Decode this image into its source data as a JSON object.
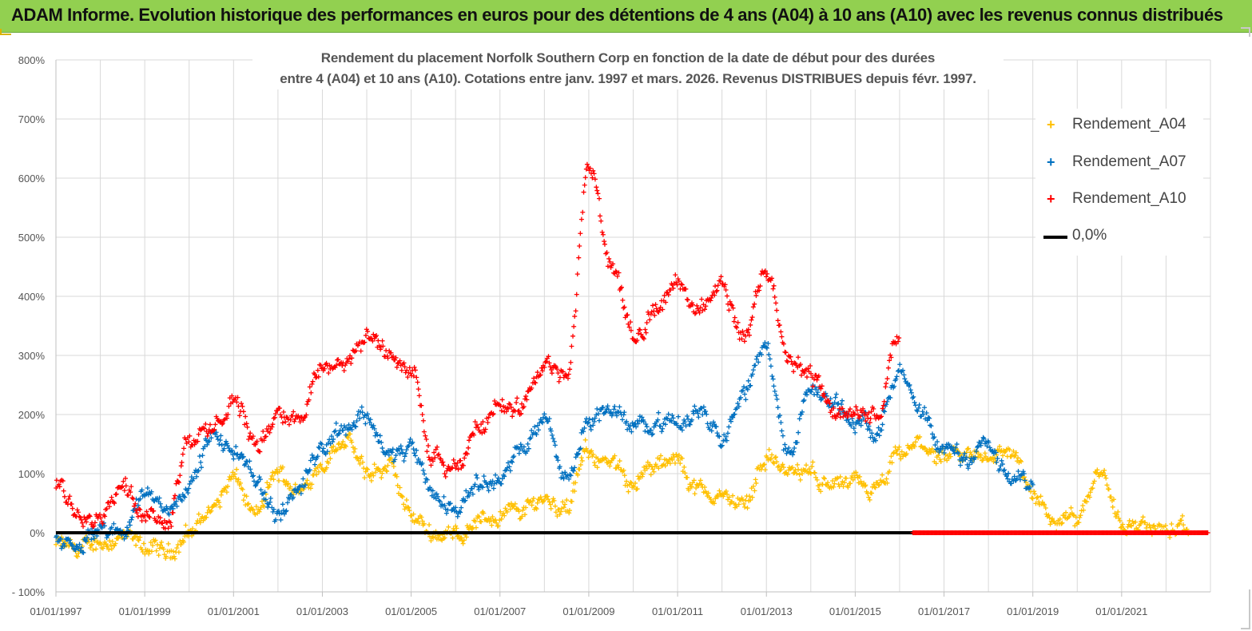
{
  "header": {
    "title": "ADAM Informe. Evolution historique des performances en euros pour des détentions de 4 ans (A04) à 10 ans (A10) avec les revenus connus distribués"
  },
  "colors": {
    "banner": "#92d050",
    "a04": "#ffc000",
    "a07": "#0070c0",
    "a10": "#ff0000",
    "zero": "#000000",
    "grid": "#d9d9d9"
  },
  "chart_data": {
    "type": "scatter",
    "title_line1": "Rendement du placement Norfolk Southern Corp en fonction de la date de début pour des durées",
    "title_line2": "entre 4 (A04) et 10 ans (A10). Cotations entre janv. 1997 et mars. 2026. Revenus DISTRIBUES depuis févr. 1997.",
    "x_tick_labels": [
      "01/01/1997",
      "01/01/1999",
      "01/01/2001",
      "01/01/2003",
      "01/01/2005",
      "01/01/2007",
      "01/01/2009",
      "01/01/2011",
      "01/01/2013",
      "01/01/2015",
      "01/01/2017",
      "01/01/2019",
      "01/01/2021"
    ],
    "y_tick_labels": [
      "- 100%",
      "0%",
      "100%",
      "200%",
      "300%",
      "400%",
      "500%",
      "600%",
      "700%",
      "800%"
    ],
    "xlim": [
      "1997-01-01",
      "2023-01-01"
    ],
    "ylim": [
      -100,
      800
    ],
    "grid": true,
    "legend_position": "top-right",
    "series": [
      {
        "name": "Rendement_A04",
        "color": "#ffc000",
        "marker": "+",
        "x": [
          1997.0,
          1997.5,
          1998.0,
          1998.5,
          1999.0,
          1999.5,
          2000.0,
          2000.5,
          2001.0,
          2001.5,
          2002.0,
          2002.5,
          2003.0,
          2003.5,
          2004.0,
          2004.5,
          2005.0,
          2005.5,
          2006.0,
          2006.5,
          2007.0,
          2007.5,
          2008.0,
          2008.5,
          2009.0,
          2009.5,
          2010.0,
          2010.5,
          2011.0,
          2011.5,
          2012.0,
          2012.5,
          2013.0,
          2013.5,
          2014.0,
          2014.5,
          2015.0,
          2015.5,
          2016.0,
          2016.5,
          2017.0,
          2017.5,
          2018.0,
          2018.5,
          2019.0,
          2019.5,
          2020.0,
          2020.5,
          2021.0,
          2021.5,
          2022.0,
          2022.5
        ],
        "y": [
          -20,
          -30,
          -15,
          -10,
          -25,
          -35,
          0,
          40,
          90,
          30,
          100,
          70,
          120,
          160,
          100,
          110,
          30,
          0,
          -5,
          20,
          30,
          40,
          60,
          40,
          140,
          110,
          90,
          110,
          120,
          70,
          60,
          50,
          130,
          100,
          100,
          80,
          80,
          70,
          130,
          150,
          120,
          130,
          130,
          140,
          60,
          20,
          30,
          110,
          20,
          10,
          5,
          0
        ]
      },
      {
        "name": "Rendement_A07",
        "color": "#0070c0",
        "marker": "+",
        "x": [
          1997.0,
          1997.5,
          1998.0,
          1998.5,
          1999.0,
          1999.5,
          2000.0,
          2000.5,
          2001.0,
          2001.5,
          2002.0,
          2002.5,
          2003.0,
          2003.5,
          2004.0,
          2004.5,
          2005.0,
          2005.5,
          2006.0,
          2006.5,
          2007.0,
          2007.5,
          2008.0,
          2008.5,
          2009.0,
          2009.5,
          2010.0,
          2010.5,
          2011.0,
          2011.5,
          2012.0,
          2012.5,
          2013.0,
          2013.5,
          2014.0,
          2014.5,
          2015.0,
          2015.5,
          2016.0,
          2016.5,
          2017.0,
          2017.5,
          2018.0,
          2018.5,
          2019.0
        ],
        "y": [
          -15,
          -25,
          5,
          0,
          70,
          40,
          80,
          160,
          140,
          90,
          30,
          80,
          150,
          180,
          200,
          130,
          140,
          60,
          40,
          90,
          90,
          140,
          200,
          90,
          190,
          210,
          180,
          190,
          180,
          210,
          170,
          240,
          310,
          130,
          240,
          220,
          190,
          180,
          270,
          190,
          140,
          130,
          150,
          90,
          85
        ]
      },
      {
        "name": "Rendement_A10",
        "color": "#ff0000",
        "marker": "+",
        "x": [
          1997.0,
          1997.5,
          1998.0,
          1998.5,
          1999.0,
          1999.5,
          2000.0,
          2000.5,
          2001.0,
          2001.5,
          2002.0,
          2002.5,
          2003.0,
          2003.5,
          2004.0,
          2004.5,
          2005.0,
          2005.5,
          2006.0,
          2006.5,
          2007.0,
          2007.5,
          2008.0,
          2008.5,
          2009.0,
          2009.5,
          2010.0,
          2010.5,
          2011.0,
          2011.5,
          2012.0,
          2012.5,
          2013.0,
          2013.5,
          2014.0,
          2014.5,
          2015.0,
          2015.5,
          2016.0
        ],
        "y": [
          80,
          40,
          30,
          80,
          40,
          20,
          160,
          170,
          230,
          150,
          200,
          200,
          280,
          290,
          330,
          300,
          280,
          120,
          100,
          180,
          220,
          210,
          280,
          260,
          620,
          460,
          330,
          380,
          420,
          380,
          420,
          330,
          450,
          300,
          270,
          210,
          200,
          200,
          340
        ]
      },
      {
        "name": "0,0%",
        "color": "#000000",
        "type": "line",
        "x": [
          1997.0,
          2023.0
        ],
        "y": [
          0,
          0
        ]
      }
    ]
  }
}
